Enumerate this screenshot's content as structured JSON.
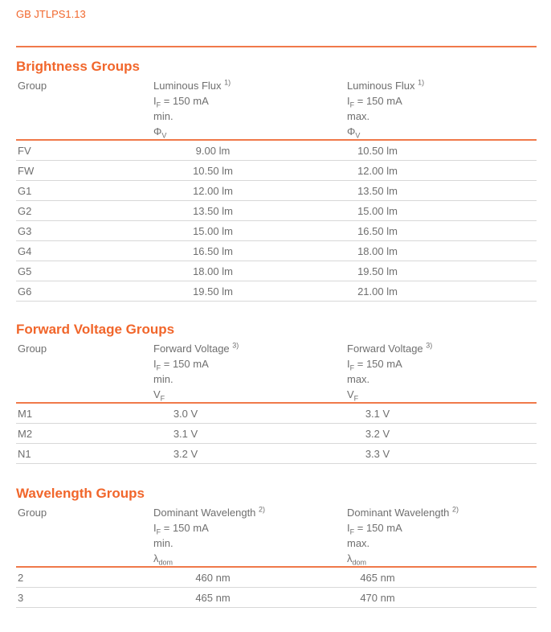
{
  "page": {
    "doc_id": "GB JTLPS1.13"
  },
  "colors": {
    "accent_text": "#f1662b",
    "accent_rule": "#f0794a",
    "body_text": "#6f6f6f",
    "row_separator": "#d8d8d8"
  },
  "tables": [
    {
      "title": "Brightness Groups",
      "group_label": "Group",
      "min": {
        "measure": "Luminous Flux",
        "footnote": "1)",
        "cond_base": "I",
        "cond_sub": "F",
        "cond_rest": "= 150 mA",
        "bound": "min.",
        "sym_base": "Φ",
        "sym_sub": "V"
      },
      "max": {
        "measure": "Luminous Flux",
        "footnote": "1)",
        "cond_base": "I",
        "cond_sub": "F",
        "cond_rest": "= 150 mA",
        "bound": "max.",
        "sym_base": "Φ",
        "sym_sub": "V"
      },
      "rows": [
        {
          "group": "FV",
          "min": "9.00 lm",
          "max": "10.50 lm"
        },
        {
          "group": "FW",
          "min": "10.50 lm",
          "max": "12.00 lm"
        },
        {
          "group": "G1",
          "min": "12.00 lm",
          "max": "13.50 lm"
        },
        {
          "group": "G2",
          "min": "13.50 lm",
          "max": "15.00 lm"
        },
        {
          "group": "G3",
          "min": "15.00 lm",
          "max": "16.50 lm"
        },
        {
          "group": "G4",
          "min": "16.50 lm",
          "max": "18.00 lm"
        },
        {
          "group": "G5",
          "min": "18.00 lm",
          "max": "19.50 lm"
        },
        {
          "group": "G6",
          "min": "19.50 lm",
          "max": "21.00 lm"
        }
      ]
    },
    {
      "title": "Forward Voltage Groups",
      "group_label": "Group",
      "min": {
        "measure": "Forward Voltage",
        "footnote": "3)",
        "cond_base": "I",
        "cond_sub": "F",
        "cond_rest": "= 150 mA",
        "bound": "min.",
        "sym_base": "V",
        "sym_sub": "F"
      },
      "max": {
        "measure": "Forward Voltage",
        "footnote": "3)",
        "cond_base": "I",
        "cond_sub": "F",
        "cond_rest": "= 150 mA",
        "bound": "max.",
        "sym_base": "V",
        "sym_sub": "F"
      },
      "rows": [
        {
          "group": "M1",
          "min": "3.0 V",
          "max": "3.1 V"
        },
        {
          "group": "M2",
          "min": "3.1 V",
          "max": "3.2 V"
        },
        {
          "group": "N1",
          "min": "3.2 V",
          "max": "3.3 V"
        }
      ]
    },
    {
      "title": "Wavelength Groups",
      "group_label": "Group",
      "min": {
        "measure": "Dominant Wavelength",
        "footnote": "2)",
        "cond_base": "I",
        "cond_sub": "F",
        "cond_rest": "= 150 mA",
        "bound": "min.",
        "sym_base": "λ",
        "sym_sub": "dom"
      },
      "max": {
        "measure": "Dominant Wavelength",
        "footnote": "2)",
        "cond_base": "I",
        "cond_sub": "F",
        "cond_rest": "= 150 mA",
        "bound": "max.",
        "sym_base": "λ",
        "sym_sub": "dom"
      },
      "rows": [
        {
          "group": "2",
          "min": "460 nm",
          "max": "465 nm"
        },
        {
          "group": "3",
          "min": "465 nm",
          "max": "470 nm"
        }
      ]
    }
  ]
}
